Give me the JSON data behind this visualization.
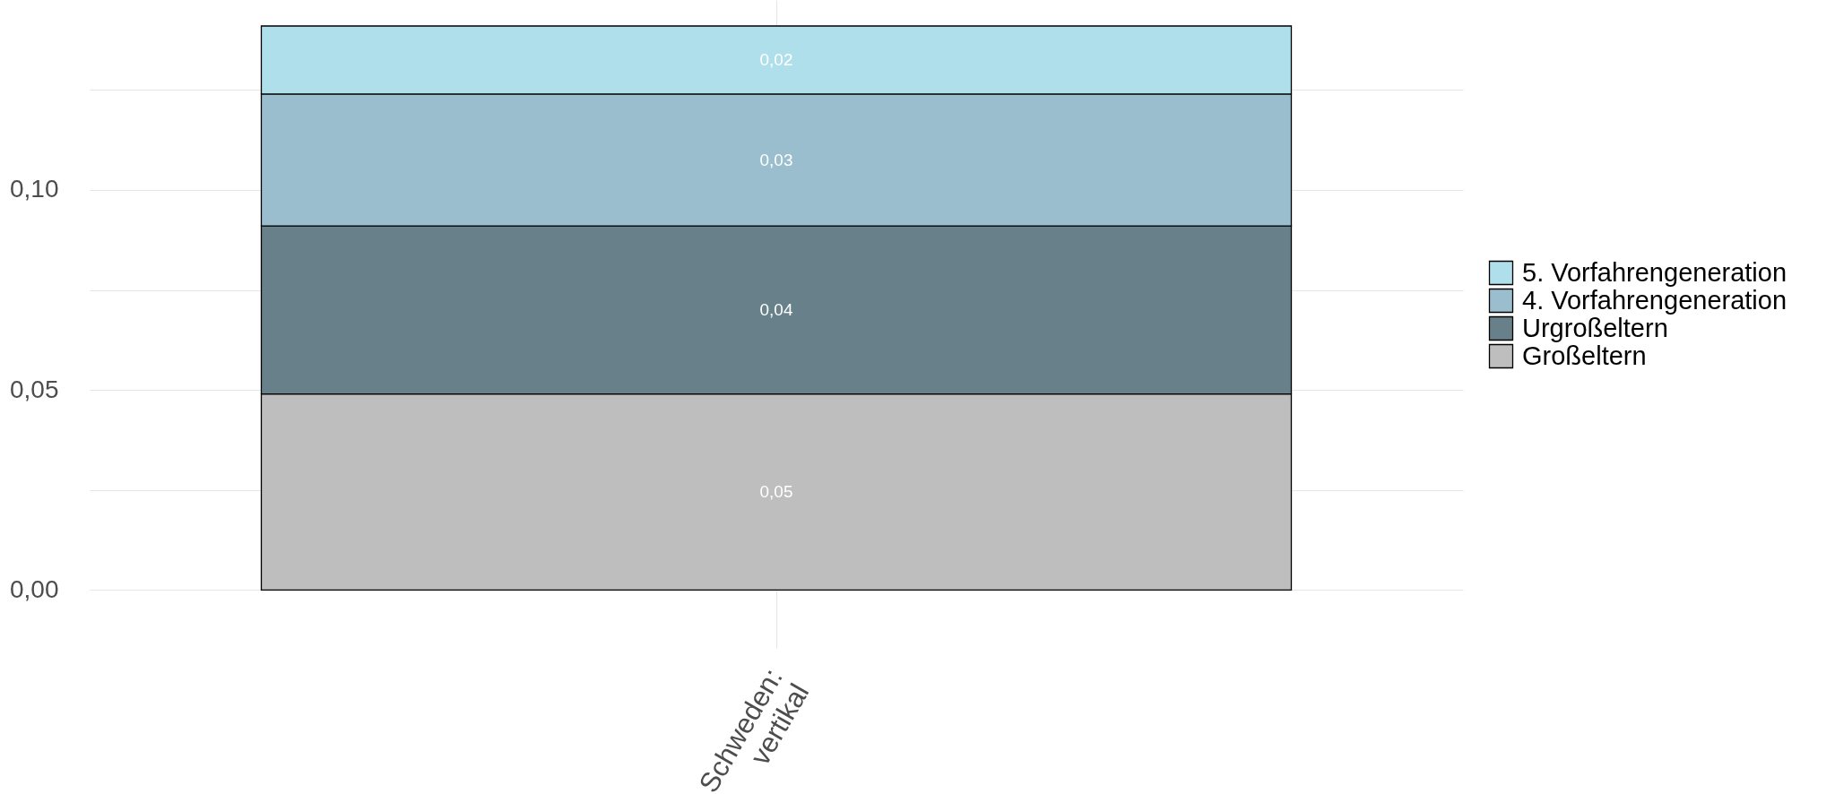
{
  "chart_data": {
    "type": "bar",
    "stacked": true,
    "categories": [
      "Schweden:\nvertikal"
    ],
    "series": [
      {
        "name": "Großeltern",
        "color": "#bebebe",
        "values": [
          0.049
        ],
        "value_labels": [
          "0,05"
        ]
      },
      {
        "name": "Urgroßeltern",
        "color": "#688089",
        "values": [
          0.042
        ],
        "value_labels": [
          "0,04"
        ]
      },
      {
        "name": "4. Vorfahrengeneration",
        "color": "#9abecd",
        "values": [
          0.033
        ],
        "value_labels": [
          "0,03"
        ]
      },
      {
        "name": "5. Vorfahrengeneration",
        "color": "#b0dfec",
        "values": [
          0.017
        ],
        "value_labels": [
          "0,02"
        ]
      }
    ],
    "ylim": [
      -0.0145,
      0.1475
    ],
    "yticks": [
      {
        "value": 0,
        "label": "0,00"
      },
      {
        "value": 0.025,
        "label": null
      },
      {
        "value": 0.05,
        "label": "0,05"
      },
      {
        "value": 0.075,
        "label": null
      },
      {
        "value": 0.1,
        "label": "0,10"
      },
      {
        "value": 0.125,
        "label": null
      }
    ],
    "grid": true,
    "legend": "right"
  }
}
